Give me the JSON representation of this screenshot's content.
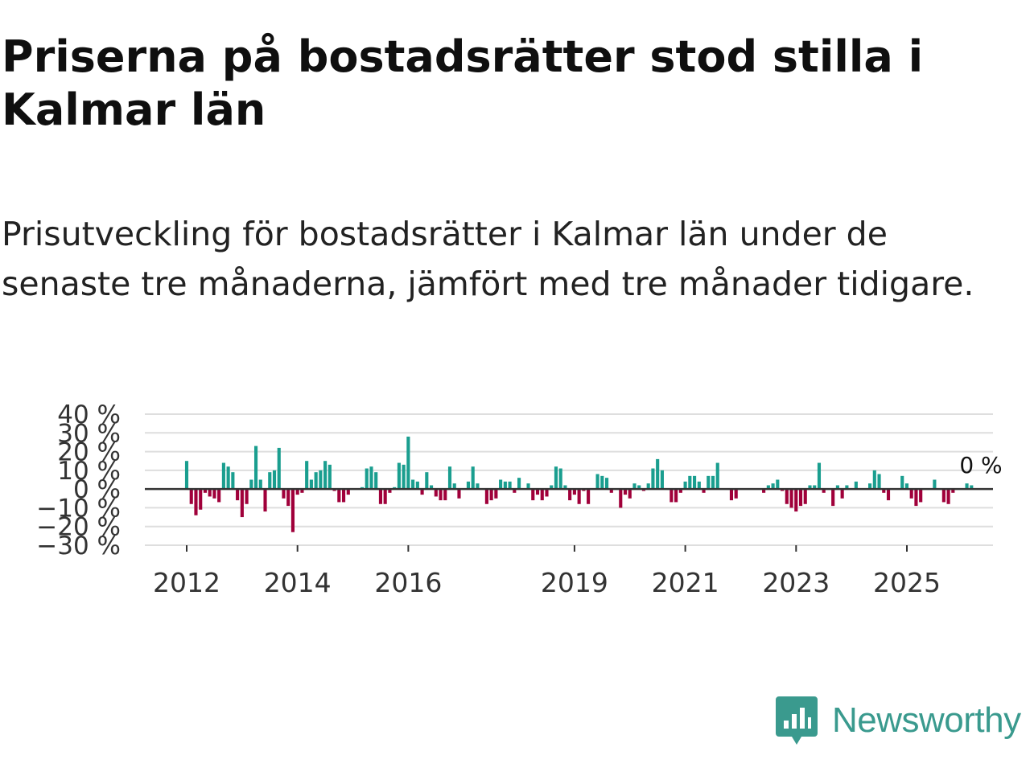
{
  "title": "Priserna på bostadsrätter stod stilla i Kalmar län",
  "subtitle": "Prisutveckling för bostadsrätter i Kalmar län under de senaste tre månaderna, jämfört med tre månader tidigare.",
  "brand": {
    "name": "Newsworthy",
    "color": "#3a9a8e"
  },
  "chart_data": {
    "type": "bar",
    "title": "",
    "xlabel": "",
    "ylabel": "",
    "ylim": [
      -30,
      40
    ],
    "yticks": [
      -30,
      -20,
      -10,
      0,
      10,
      20,
      30,
      40
    ],
    "ytick_labels": [
      "−30 %",
      "−20 %",
      "−10 %",
      "0 %",
      "10 %",
      "20 %",
      "30 %",
      "40 %"
    ],
    "x_start": 2012.0,
    "x_end": 2026.5,
    "x_step": 0.08333,
    "xticks": [
      2012,
      2014,
      2016,
      2019,
      2021,
      2023,
      2025
    ],
    "xtick_labels": [
      "2012",
      "2014",
      "2016",
      "2019",
      "2021",
      "2023",
      "2025"
    ],
    "positive_color": "#1a9e8f",
    "negative_color": "#a0003a",
    "last_value_label": "0 %",
    "values": [
      15,
      -8,
      -14,
      -11,
      -2,
      -4,
      -5,
      -7,
      14,
      12,
      9,
      -6,
      -15,
      -8,
      5,
      23,
      5,
      -12,
      9,
      10,
      22,
      -5,
      -9,
      -23,
      -3,
      -2,
      15,
      5,
      9,
      10,
      15,
      13,
      -1,
      -7,
      -7,
      -3,
      0,
      0,
      1,
      11,
      12,
      9,
      -8,
      -8,
      -2,
      1,
      14,
      13,
      28,
      5,
      4,
      -3,
      9,
      2,
      -4,
      -6,
      -6,
      12,
      3,
      -5,
      0,
      4,
      12,
      3,
      0,
      -8,
      -6,
      -5,
      5,
      4,
      4,
      -2,
      6,
      0,
      3,
      -6,
      -3,
      -6,
      -4,
      2,
      12,
      11,
      2,
      -6,
      -3,
      -8,
      -1,
      -8,
      0,
      8,
      7,
      6,
      -2,
      0,
      -10,
      -3,
      -5,
      3,
      2,
      -1,
      3,
      11,
      16,
      10,
      0,
      -7,
      -7,
      -2,
      4,
      7,
      7,
      4,
      -2,
      7,
      7,
      14,
      0,
      0,
      -6,
      -5,
      0,
      0,
      0,
      0,
      0,
      -2,
      2,
      3,
      5,
      -1,
      -8,
      -10,
      -12,
      -9,
      -8,
      2,
      2,
      14,
      -2,
      0,
      -9,
      2,
      -5,
      2,
      0,
      4,
      0,
      0,
      3,
      10,
      8,
      -2,
      -6,
      0,
      0,
      7,
      3,
      -5,
      -9,
      -7,
      0,
      0,
      5,
      0,
      -7,
      -8,
      -2,
      0,
      0,
      3,
      2,
      0
    ]
  }
}
